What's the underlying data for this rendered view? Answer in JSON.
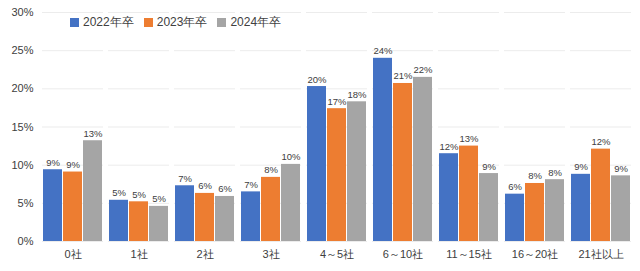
{
  "chart_data": {
    "type": "bar",
    "categories": [
      "0社",
      "1社",
      "2社",
      "3社",
      "4～5社",
      "6～10社",
      "11～15社",
      "16～20社",
      "21社以上"
    ],
    "series": [
      {
        "name": "2022年卒",
        "color": "#4472c4",
        "values": [
          9.4,
          5.4,
          7.3,
          6.5,
          20.3,
          24.0,
          11.5,
          6.2,
          8.8
        ],
        "value_labels": [
          "9%",
          "5%",
          "7%",
          "7%",
          "20%",
          "24%",
          "12%",
          "6%",
          "9%"
        ]
      },
      {
        "name": "2023年卒",
        "color": "#ed7d31",
        "values": [
          9.1,
          5.2,
          6.3,
          8.4,
          17.4,
          20.7,
          12.5,
          7.6,
          12.1
        ],
        "value_labels": [
          "9%",
          "5%",
          "6%",
          "8%",
          "17%",
          "21%",
          "13%",
          "8%",
          "12%"
        ]
      },
      {
        "name": "2024年卒",
        "color": "#a5a5a5",
        "values": [
          13.2,
          4.6,
          5.9,
          10.1,
          18.3,
          21.5,
          8.9,
          8.1,
          8.6
        ],
        "value_labels": [
          "13%",
          "5%",
          "6%",
          "10%",
          "18%",
          "22%",
          "9%",
          "8%",
          "9%"
        ]
      }
    ],
    "ylim": [
      0,
      30
    ],
    "yticks": [
      {
        "value": 0,
        "label": "0%"
      },
      {
        "value": 5,
        "label": "5%"
      },
      {
        "value": 10,
        "label": "10%"
      },
      {
        "value": 15,
        "label": "15%"
      },
      {
        "value": 20,
        "label": "20%"
      },
      {
        "value": 25,
        "label": "25%"
      },
      {
        "value": 30,
        "label": "30%"
      }
    ],
    "grid": true,
    "legend": "top-left",
    "data_labels": true
  }
}
